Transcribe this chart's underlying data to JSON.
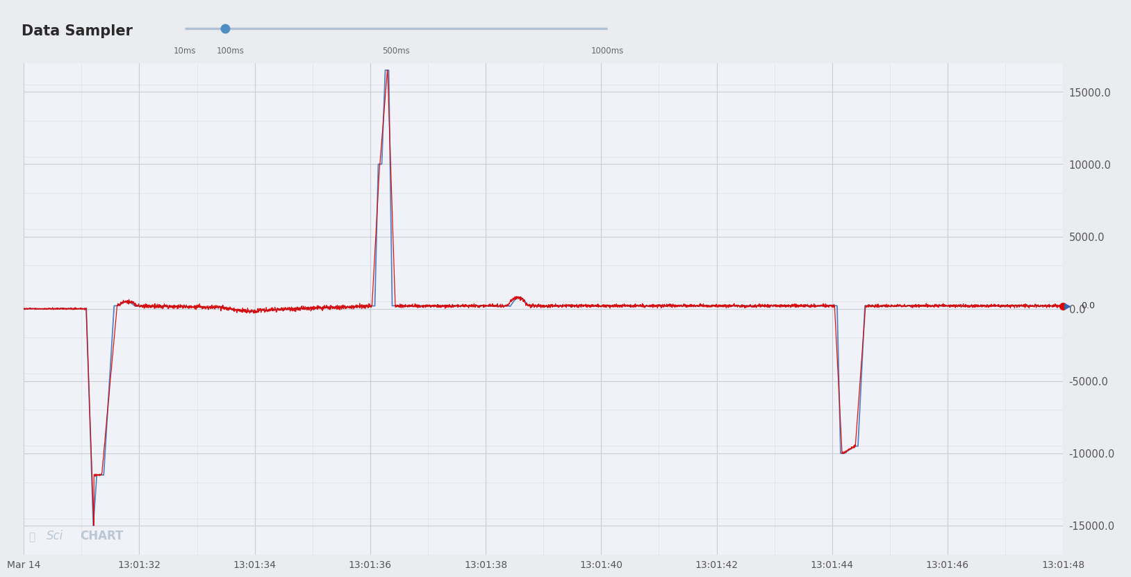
{
  "title": "Data Sampler",
  "slider_label_left": "10ms",
  "slider_label_mid": "100ms",
  "slider_label_500": "500ms",
  "slider_label_right": "1000ms",
  "y_ticks": [
    -15000.0,
    -10000.0,
    -5000.0,
    0.0,
    5000.0,
    10000.0,
    15000.0
  ],
  "x_tick_labels": [
    "Mar 14",
    "13:01:32",
    "13:01:34",
    "13:01:36",
    "13:01:38",
    "13:01:40",
    "13:01:42",
    "13:01:44",
    "13:01:46",
    "13:01:48"
  ],
  "bg_color": "#eaecf0",
  "chart_bg": "#f0f2f7",
  "grid_color_major": "#c8cdd8",
  "grid_color_minor": "#dde0e8",
  "line_color_red": "#dd0000",
  "line_color_blue": "#4477bb",
  "text_color": "#555555",
  "scichart_color": "#aab8c8",
  "cursor_label": "0.0",
  "header_bg": "#ffffff",
  "separator_color": "#cccccc",
  "ylim": [
    -17000,
    17000
  ],
  "xlim": [
    0,
    20
  ]
}
